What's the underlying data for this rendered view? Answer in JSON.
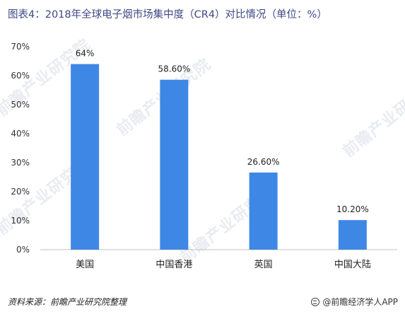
{
  "header": {
    "title": "图表4：2018年全球电子烟市场集中度（CR4）对比情况（单位：%）"
  },
  "watermark": {
    "text": "前瞻产业研究院"
  },
  "footer": {
    "source": "资料来源：前瞻产业研究院整理",
    "brand": "@前瞻经济学人APP"
  },
  "colors": {
    "bar": "#3f87e5",
    "axis": "#bfbfbf",
    "title": "#3f4a86"
  },
  "chart_data": {
    "type": "bar",
    "title": "图表4：2018年全球电子烟市场集中度（CR4）对比情况（单位：%）",
    "xlabel": "",
    "ylabel": "",
    "categories": [
      "美国",
      "中国香港",
      "英国",
      "中国大陆"
    ],
    "values": [
      64,
      58.6,
      26.6,
      10.2
    ],
    "data_labels": [
      "64%",
      "58.60%",
      "26.60%",
      "10.20%"
    ],
    "ylim": [
      0,
      70
    ],
    "yticks": [
      "0%",
      "10%",
      "20%",
      "30%",
      "40%",
      "50%",
      "60%",
      "70%"
    ],
    "grid": false,
    "legend": "none"
  }
}
